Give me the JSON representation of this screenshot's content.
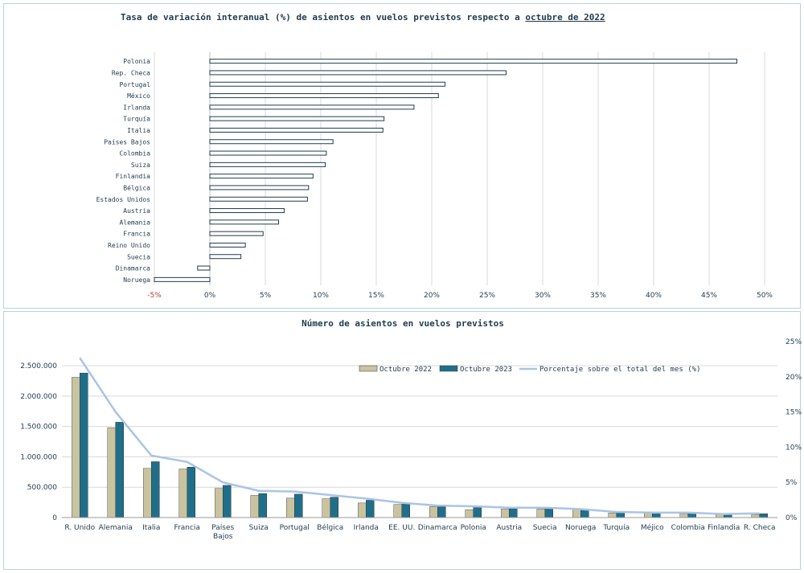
{
  "chart_data": [
    {
      "type": "bar",
      "orientation": "horizontal",
      "title": "Tasa de variación interanual (%) de asientos en vuelos previstos respecto a",
      "title_underlined": "octubre de 2022",
      "categories": [
        "Polonia",
        "Rep. Checa",
        "Portugal",
        "México",
        "Irlanda",
        "Turquía",
        "Italia",
        "Países Bajos",
        "Colombia",
        "Suiza",
        "Finlandia",
        "Bélgica",
        "Estados Unidos",
        "Austria",
        "Alemania",
        "Francia",
        "Reino Unido",
        "Suecia",
        "Dinamarca",
        "Noruega"
      ],
      "values": [
        47.5,
        26.7,
        21.2,
        20.6,
        18.4,
        15.7,
        15.6,
        11.1,
        10.5,
        10.4,
        9.3,
        8.9,
        8.8,
        6.7,
        6.2,
        4.8,
        3.2,
        2.8,
        -1.1,
        -5.0
      ],
      "xlim": [
        -5,
        50
      ],
      "xticks": [
        "-5%",
        "0%",
        "5%",
        "10%",
        "15%",
        "20%",
        "25%",
        "30%",
        "35%",
        "40%",
        "45%",
        "50%"
      ],
      "grid": true,
      "colors": {
        "bar_fill": "#ffffff",
        "bar_edge": "#1f3b4d",
        "grid": "#d9d9d9",
        "negative_tick": "#c0392b"
      }
    },
    {
      "type": "bar",
      "title": "Número de asientos en vuelos previstos",
      "categories": [
        "R. Unido",
        "Alemania",
        "Italia",
        "Francia",
        "Países Bajos",
        "Suiza",
        "Portugal",
        "Bélgica",
        "Irlanda",
        "EE. UU.",
        "Dinamarca",
        "Polonia",
        "Austria",
        "Suecia",
        "Noruega",
        "Turquía",
        "Méjico",
        "Colombia",
        "Finlandia",
        "R. Checa"
      ],
      "category_lines": [
        [
          "R. Unido"
        ],
        [
          "Alemania"
        ],
        [
          "Italia"
        ],
        [
          "Francia"
        ],
        [
          "Países",
          "Bajos"
        ],
        [
          "Suiza"
        ],
        [
          "Portugal"
        ],
        [
          "Bélgica"
        ],
        [
          "Irlanda"
        ],
        [
          "EE. UU."
        ],
        [
          "Dinamarca"
        ],
        [
          "Polonia"
        ],
        [
          "Austria"
        ],
        [
          "Suecia"
        ],
        [
          "Noruega"
        ],
        [
          "Turquía"
        ],
        [
          "Méjico"
        ],
        [
          "Colombia"
        ],
        [
          "Finlandia"
        ],
        [
          "R. Checa"
        ]
      ],
      "series": [
        {
          "name": "Octubre 2022",
          "values": [
            2310000,
            1480000,
            810000,
            800000,
            480000,
            365000,
            320000,
            310000,
            240000,
            215000,
            180000,
            130000,
            140000,
            140000,
            140000,
            75000,
            70000,
            65000,
            50000,
            50000
          ],
          "color": "#c9c39f"
        },
        {
          "name": "Octubre 2023",
          "values": [
            2380000,
            1570000,
            920000,
            830000,
            530000,
            395000,
            385000,
            335000,
            285000,
            220000,
            175000,
            165000,
            145000,
            140000,
            125000,
            80000,
            75000,
            70000,
            55000,
            62000
          ],
          "color": "#1f6f8b"
        },
        {
          "name": "Porcentaje sobre el total del mes (%)",
          "axis": "right",
          "values": [
            22.7,
            15.0,
            8.8,
            7.9,
            5.0,
            3.8,
            3.7,
            3.2,
            2.7,
            2.1,
            1.7,
            1.6,
            1.4,
            1.4,
            1.2,
            0.8,
            0.7,
            0.7,
            0.5,
            0.6
          ],
          "color": "#a9c4e4"
        }
      ],
      "ylim": [
        0,
        2700000
      ],
      "yticks": [
        "0",
        "500.000",
        "1.000.000",
        "1.500.000",
        "2.000.000",
        "2.500.000"
      ],
      "y2lim": [
        0,
        25
      ],
      "y2ticks": [
        "0%",
        "5%",
        "10%",
        "15%",
        "20%",
        "25%"
      ],
      "legend": "top-right",
      "grid": true
    }
  ]
}
